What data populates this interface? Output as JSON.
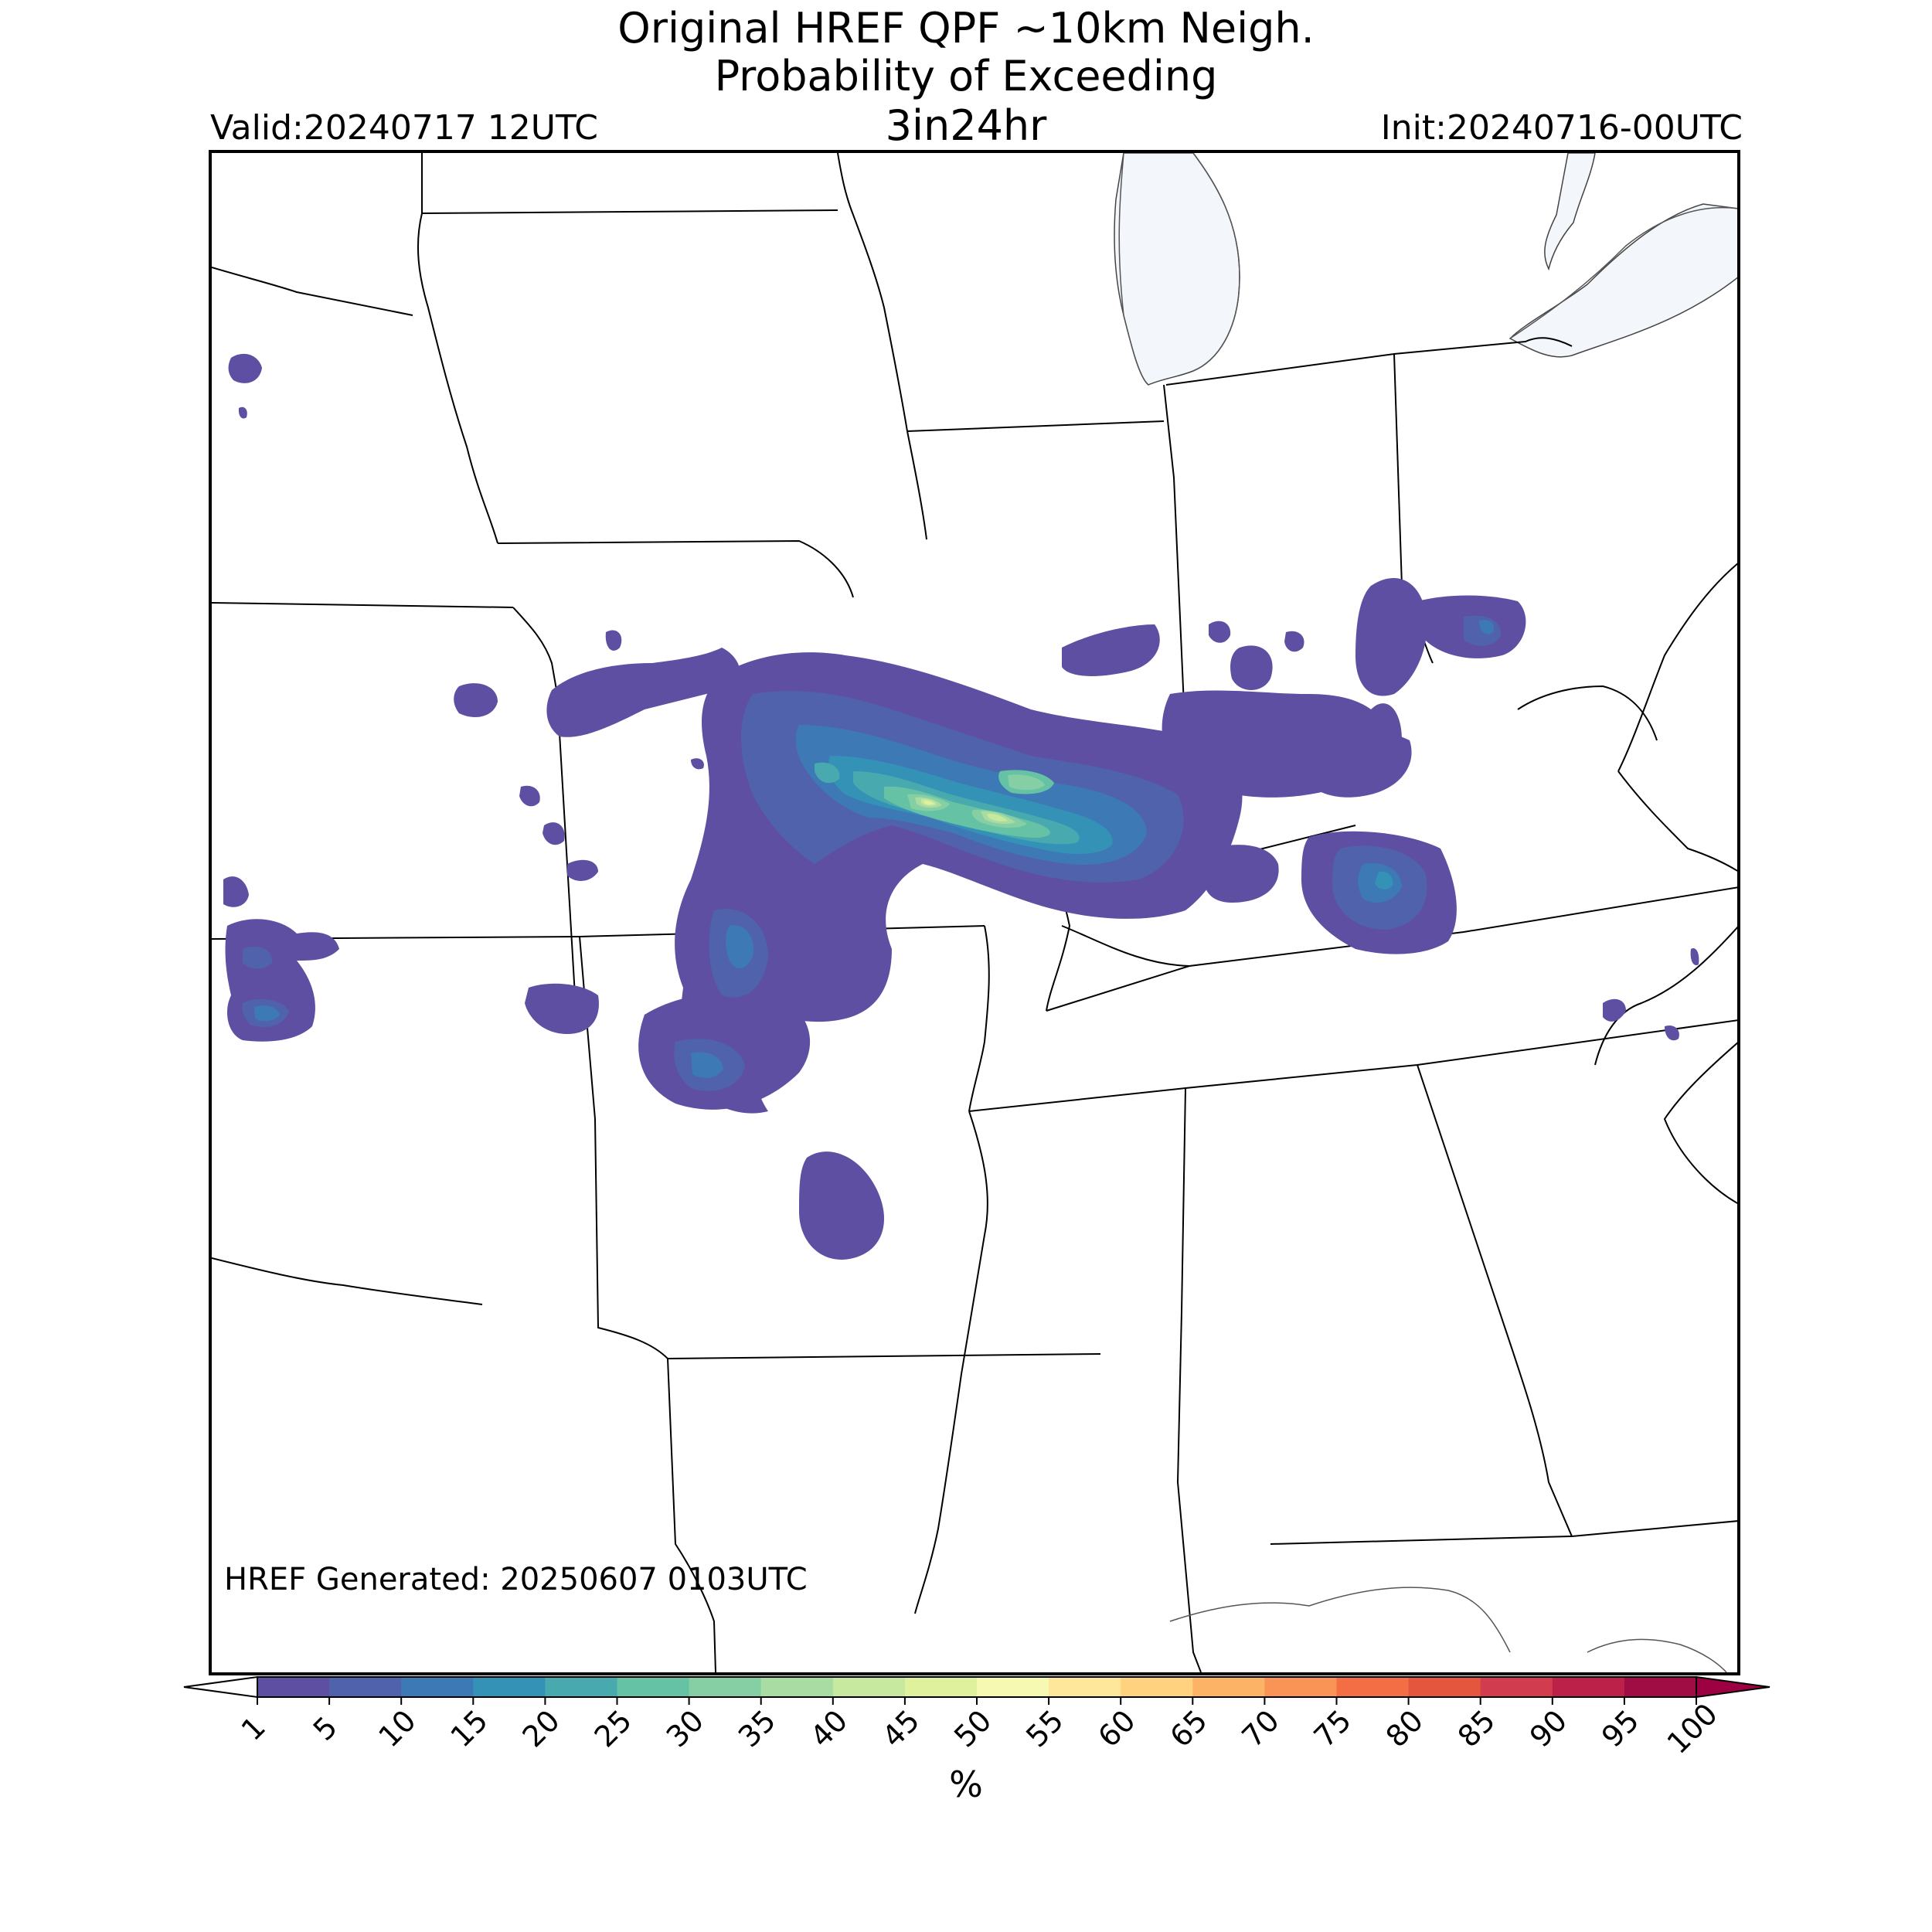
{
  "header": {
    "title_line1": "Original HREF QPF ~10km Neigh.",
    "title_line2": "Probability of Exceeding",
    "title_line3": "3in24hr",
    "valid": "Valid:20240717 12UTC",
    "init": "Init:20240716-00UTC"
  },
  "map": {
    "generated": "HREF Generated: 20250607 0103UTC",
    "colors": {
      "water": "#f3f6fb",
      "border": "#000000",
      "p1": "#5e4fa2",
      "p5": "#4f62ab",
      "p10": "#3d7ab5",
      "p15": "#3592b7",
      "p20": "#48a9ae",
      "p25": "#66c2a5",
      "p30": "#86cfa5",
      "p35": "#a8dca2",
      "p40": "#c6e89f",
      "p45": "#e0f19d",
      "p50": "#f5f9b2"
    }
  },
  "colorbar": {
    "ticks": [
      "1",
      "5",
      "10",
      "15",
      "20",
      "25",
      "30",
      "35",
      "40",
      "45",
      "50",
      "55",
      "60",
      "65",
      "70",
      "75",
      "80",
      "85",
      "90",
      "95",
      "100"
    ],
    "colors": [
      "#5e4fa2",
      "#4f62ab",
      "#3d7ab5",
      "#3592b7",
      "#48a9ae",
      "#66c2a5",
      "#86cfa5",
      "#a8dca2",
      "#c6e89f",
      "#e0f19d",
      "#f5f9b2",
      "#fee79a",
      "#fed27f",
      "#fdb365",
      "#f99456",
      "#f36e44",
      "#e4563d",
      "#d23c4f",
      "#bc2249",
      "#a00d44"
    ],
    "under_color": "#ffffff",
    "over_color": "#9e0142",
    "unit_label": "%"
  }
}
